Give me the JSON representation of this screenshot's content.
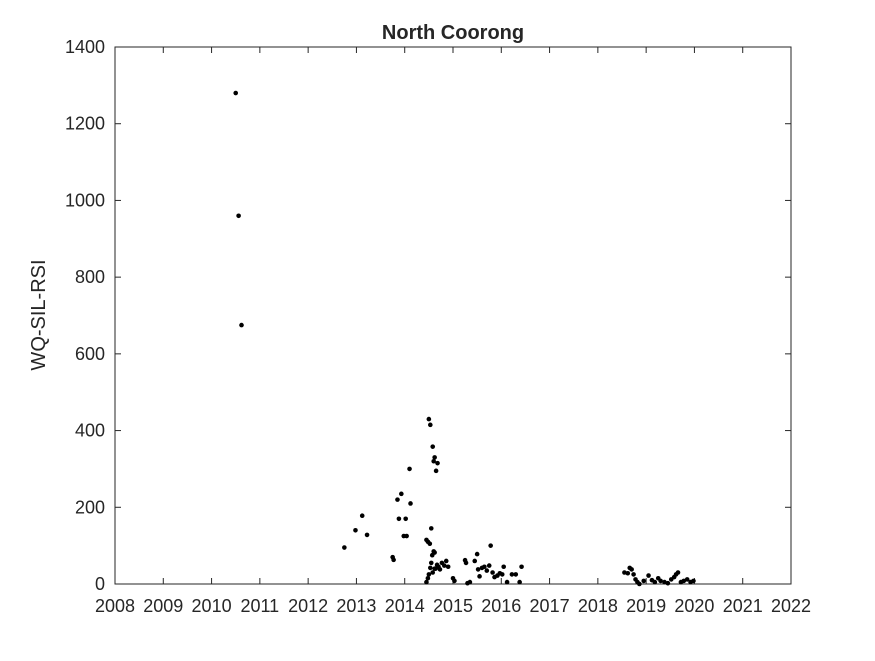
{
  "chart_data": {
    "type": "scatter",
    "title": "North Coorong",
    "xlabel": "",
    "ylabel": "WQ-SIL-RSI",
    "xlim": [
      2008,
      2022
    ],
    "ylim": [
      0,
      1400
    ],
    "xticks": [
      "2008",
      "2009",
      "2010",
      "2011",
      "2012",
      "2013",
      "2014",
      "2015",
      "2016",
      "2017",
      "2018",
      "2019",
      "2020",
      "2021",
      "2022"
    ],
    "yticks": [
      "0",
      "200",
      "400",
      "600",
      "800",
      "1000",
      "1200",
      "1400"
    ],
    "grid": false,
    "marker_color": "#000000",
    "series": [
      {
        "points": [
          [
            2010.5,
            1280
          ],
          [
            2010.56,
            960
          ],
          [
            2010.62,
            675
          ],
          [
            2012.75,
            95
          ],
          [
            2012.98,
            140
          ],
          [
            2013.12,
            178
          ],
          [
            2013.22,
            128
          ],
          [
            2013.75,
            70
          ],
          [
            2013.77,
            63
          ],
          [
            2013.85,
            220
          ],
          [
            2013.88,
            170
          ],
          [
            2013.93,
            235
          ],
          [
            2013.98,
            125
          ],
          [
            2014.02,
            170
          ],
          [
            2014.04,
            125
          ],
          [
            2014.1,
            300
          ],
          [
            2014.12,
            210
          ],
          [
            2014.5,
            430
          ],
          [
            2014.53,
            415
          ],
          [
            2014.55,
            145
          ],
          [
            2014.58,
            358
          ],
          [
            2014.6,
            320
          ],
          [
            2014.62,
            330
          ],
          [
            2014.65,
            295
          ],
          [
            2014.68,
            315
          ],
          [
            2014.45,
            115
          ],
          [
            2014.48,
            110
          ],
          [
            2014.52,
            105
          ],
          [
            2014.55,
            55
          ],
          [
            2014.57,
            75
          ],
          [
            2014.6,
            85
          ],
          [
            2014.62,
            82
          ],
          [
            2014.64,
            40
          ],
          [
            2014.67,
            50
          ],
          [
            2014.7,
            45
          ],
          [
            2014.73,
            38
          ],
          [
            2014.77,
            55
          ],
          [
            2014.82,
            48
          ],
          [
            2014.86,
            60
          ],
          [
            2014.9,
            45
          ],
          [
            2014.45,
            5
          ],
          [
            2014.48,
            15
          ],
          [
            2014.5,
            25
          ],
          [
            2014.53,
            42
          ],
          [
            2014.58,
            30
          ],
          [
            2014.62,
            40
          ],
          [
            2015.0,
            15
          ],
          [
            2015.03,
            8
          ],
          [
            2015.25,
            62
          ],
          [
            2015.27,
            55
          ],
          [
            2015.3,
            2
          ],
          [
            2015.35,
            5
          ],
          [
            2015.45,
            60
          ],
          [
            2015.5,
            78
          ],
          [
            2015.52,
            38
          ],
          [
            2015.55,
            20
          ],
          [
            2015.6,
            42
          ],
          [
            2015.65,
            45
          ],
          [
            2015.7,
            35
          ],
          [
            2015.75,
            48
          ],
          [
            2015.78,
            100
          ],
          [
            2015.82,
            30
          ],
          [
            2015.86,
            18
          ],
          [
            2015.92,
            22
          ],
          [
            2015.97,
            28
          ],
          [
            2016.02,
            25
          ],
          [
            2016.05,
            45
          ],
          [
            2016.12,
            5
          ],
          [
            2016.22,
            25
          ],
          [
            2016.3,
            25
          ],
          [
            2016.38,
            5
          ],
          [
            2016.42,
            45
          ],
          [
            2018.55,
            30
          ],
          [
            2018.62,
            28
          ],
          [
            2018.66,
            42
          ],
          [
            2018.7,
            38
          ],
          [
            2018.74,
            25
          ],
          [
            2018.78,
            12
          ],
          [
            2018.82,
            5
          ],
          [
            2018.86,
            0
          ],
          [
            2018.95,
            8
          ],
          [
            2019.05,
            22
          ],
          [
            2019.12,
            10
          ],
          [
            2019.18,
            5
          ],
          [
            2019.25,
            15
          ],
          [
            2019.3,
            8
          ],
          [
            2019.38,
            5
          ],
          [
            2019.45,
            2
          ],
          [
            2019.52,
            12
          ],
          [
            2019.58,
            18
          ],
          [
            2019.62,
            25
          ],
          [
            2019.66,
            30
          ],
          [
            2019.72,
            5
          ],
          [
            2019.78,
            8
          ],
          [
            2019.85,
            12
          ],
          [
            2019.92,
            5
          ],
          [
            2019.98,
            8
          ]
        ]
      }
    ]
  }
}
